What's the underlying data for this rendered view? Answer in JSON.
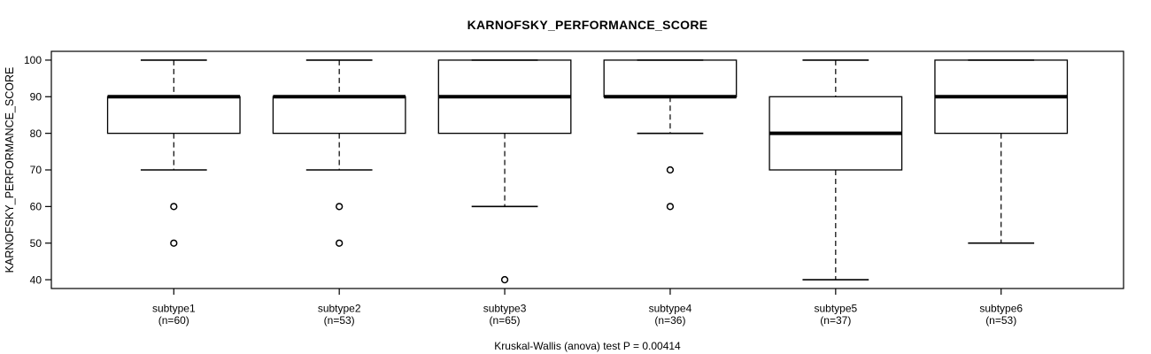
{
  "chart_data": {
    "type": "boxplot",
    "title": "KARNOFSKY_PERFORMANCE_SCORE",
    "ylabel": "KARNOFSKY_PERFORMANCE_SCORE",
    "footer": "Kruskal-Wallis (anova) test P = 0.00414",
    "ylim": [
      37.6,
      102.4
    ],
    "xlim": [
      0.26,
      6.74
    ],
    "yticks": [
      40,
      50,
      60,
      70,
      80,
      90,
      100
    ],
    "grid": false,
    "colors": {
      "line": "#000000",
      "box_fill": "#ffffff",
      "background": "#ffffff",
      "text": "#000000"
    },
    "groups": [
      {
        "label": "subtype1",
        "n_label": "(n=60)",
        "n": 60,
        "whisker_low": 70,
        "q1": 80,
        "median": 90,
        "q3": 90,
        "whisker_high": 100,
        "outliers": [
          60,
          50
        ]
      },
      {
        "label": "subtype2",
        "n_label": "(n=53)",
        "n": 53,
        "whisker_low": 70,
        "q1": 80,
        "median": 90,
        "q3": 90,
        "whisker_high": 100,
        "outliers": [
          60,
          50
        ]
      },
      {
        "label": "subtype3",
        "n_label": "(n=65)",
        "n": 65,
        "whisker_low": 60,
        "q1": 80,
        "median": 90,
        "q3": 100,
        "whisker_high": 100,
        "outliers": [
          40
        ]
      },
      {
        "label": "subtype4",
        "n_label": "(n=36)",
        "n": 36,
        "whisker_low": 80,
        "q1": 90,
        "median": 90,
        "q3": 100,
        "whisker_high": 100,
        "outliers": [
          70,
          60
        ]
      },
      {
        "label": "subtype5",
        "n_label": "(n=37)",
        "n": 37,
        "whisker_low": 40,
        "q1": 70,
        "median": 80,
        "q3": 90,
        "whisker_high": 100,
        "outliers": []
      },
      {
        "label": "subtype6",
        "n_label": "(n=53)",
        "n": 53,
        "whisker_low": 50,
        "q1": 80,
        "median": 90,
        "q3": 100,
        "whisker_high": 100,
        "outliers": []
      }
    ]
  }
}
